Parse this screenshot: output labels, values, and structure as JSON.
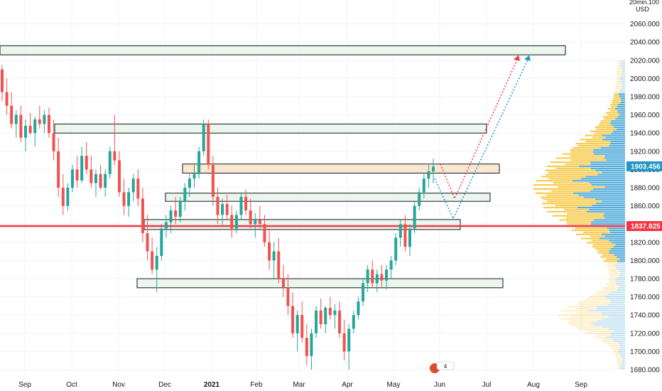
{
  "chart_data": {
    "type": "candlestick",
    "y_axis": {
      "unit_line1": "20min.100",
      "unit_line2": "USD",
      "ticks": [
        2060,
        2040,
        2020,
        2000,
        1980,
        1960,
        1940,
        1920,
        1900,
        1880,
        1860,
        1840,
        1820,
        1800,
        1780,
        1760,
        1740,
        1720,
        1700,
        1680
      ],
      "tick_labels": [
        "2060.000",
        "2040.000",
        "2020.000",
        "2000.000",
        "1980.000",
        "1960.000",
        "1940.000",
        "1920.000",
        "1900.000",
        "1880.000",
        "1860.000",
        "1840.000",
        "1820.000",
        "1800.000",
        "1780.000",
        "1760.000",
        "1740.000",
        "1720.000",
        "1700.000",
        "1680.000"
      ],
      "ylim": [
        1673,
        2080
      ]
    },
    "x_axis": {
      "labels": [
        "Sep",
        "Oct",
        "Nov",
        "Dec",
        "2021",
        "Feb",
        "Mar",
        "Apr",
        "May",
        "Jun",
        "Jul",
        "Aug",
        "Sep"
      ]
    },
    "price_badges": [
      {
        "value": 1903.456,
        "label": "1903.456",
        "color": "#2196c9"
      },
      {
        "value": 1837.825,
        "label": "1837.825",
        "color": "#f23645"
      }
    ],
    "horizontal_line": {
      "value": 1837.825,
      "color": "#f23645"
    },
    "zones": [
      {
        "name": "zone-top",
        "top": 2036,
        "bottom": 2026,
        "fill": "#e8f5e9"
      },
      {
        "name": "zone-1945",
        "top": 1950,
        "bottom": 1940,
        "fill": "#e8f5e9"
      },
      {
        "name": "zone-1900",
        "top": 1906,
        "bottom": 1896,
        "fill": "#fbe3c9"
      },
      {
        "name": "zone-1875",
        "top": 1874,
        "bottom": 1865,
        "fill": "#e8f5e9"
      },
      {
        "name": "zone-1842",
        "top": 1845,
        "bottom": 1834,
        "fill": "#e8f5e9"
      },
      {
        "name": "zone-1775",
        "top": 1780,
        "bottom": 1770,
        "fill": "#e8f5e9"
      }
    ],
    "projections": [
      {
        "name": "projection-red",
        "color": "#f23645",
        "points": [
          [
            1906,
            0
          ],
          [
            1868,
            1
          ],
          [
            2024,
            2
          ]
        ]
      },
      {
        "name": "projection-blue",
        "color": "#2196c9",
        "points": [
          [
            1890,
            0
          ],
          [
            1846,
            1
          ],
          [
            2024,
            2
          ]
        ]
      }
    ],
    "volume_profile_note": "yellow/blue volume-by-price histogram on right",
    "badge": {
      "text": "4"
    },
    "candles": [
      [
        2010,
        2015,
        1975,
        1985
      ],
      [
        1985,
        2000,
        1960,
        1970
      ],
      [
        1970,
        1985,
        1945,
        1950
      ],
      [
        1950,
        1965,
        1935,
        1960
      ],
      [
        1960,
        1970,
        1930,
        1935
      ],
      [
        1935,
        1955,
        1920,
        1948
      ],
      [
        1948,
        1962,
        1938,
        1940
      ],
      [
        1940,
        1958,
        1925,
        1955
      ],
      [
        1955,
        1970,
        1945,
        1950
      ],
      [
        1950,
        1965,
        1940,
        1960
      ],
      [
        1960,
        1968,
        1935,
        1940
      ],
      [
        1940,
        1955,
        1910,
        1920
      ],
      [
        1920,
        1935,
        1870,
        1880
      ],
      [
        1880,
        1895,
        1850,
        1860
      ],
      [
        1860,
        1885,
        1855,
        1880
      ],
      [
        1880,
        1905,
        1875,
        1900
      ],
      [
        1900,
        1915,
        1880,
        1888
      ],
      [
        1888,
        1925,
        1885,
        1915
      ],
      [
        1915,
        1930,
        1895,
        1900
      ],
      [
        1900,
        1915,
        1880,
        1885
      ],
      [
        1885,
        1900,
        1870,
        1895
      ],
      [
        1895,
        1905,
        1878,
        1880
      ],
      [
        1880,
        1900,
        1870,
        1895
      ],
      [
        1895,
        1925,
        1890,
        1920
      ],
      [
        1920,
        1960,
        1905,
        1910
      ],
      [
        1910,
        1920,
        1870,
        1875
      ],
      [
        1875,
        1890,
        1850,
        1860
      ],
      [
        1860,
        1880,
        1848,
        1875
      ],
      [
        1875,
        1895,
        1865,
        1890
      ],
      [
        1890,
        1900,
        1860,
        1868
      ],
      [
        1868,
        1880,
        1820,
        1830
      ],
      [
        1830,
        1850,
        1800,
        1810
      ],
      [
        1810,
        1825,
        1785,
        1790
      ],
      [
        1790,
        1815,
        1765,
        1805
      ],
      [
        1805,
        1840,
        1800,
        1835
      ],
      [
        1835,
        1850,
        1825,
        1842
      ],
      [
        1842,
        1860,
        1830,
        1855
      ],
      [
        1855,
        1870,
        1840,
        1848
      ],
      [
        1848,
        1870,
        1842,
        1865
      ],
      [
        1865,
        1885,
        1855,
        1880
      ],
      [
        1880,
        1895,
        1870,
        1890
      ],
      [
        1890,
        1905,
        1880,
        1895
      ],
      [
        1895,
        1925,
        1890,
        1920
      ],
      [
        1920,
        1955,
        1915,
        1950
      ],
      [
        1950,
        1955,
        1900,
        1905
      ],
      [
        1905,
        1915,
        1860,
        1870
      ],
      [
        1870,
        1880,
        1840,
        1850
      ],
      [
        1850,
        1868,
        1838,
        1862
      ],
      [
        1862,
        1872,
        1845,
        1850
      ],
      [
        1850,
        1860,
        1825,
        1835
      ],
      [
        1835,
        1855,
        1830,
        1850
      ],
      [
        1850,
        1875,
        1845,
        1870
      ],
      [
        1870,
        1878,
        1850,
        1855
      ],
      [
        1855,
        1868,
        1835,
        1840
      ],
      [
        1840,
        1852,
        1825,
        1845
      ],
      [
        1845,
        1860,
        1835,
        1840
      ],
      [
        1840,
        1850,
        1815,
        1820
      ],
      [
        1820,
        1835,
        1790,
        1800
      ],
      [
        1800,
        1820,
        1780,
        1810
      ],
      [
        1810,
        1825,
        1775,
        1780
      ],
      [
        1780,
        1795,
        1760,
        1770
      ],
      [
        1770,
        1785,
        1740,
        1750
      ],
      [
        1750,
        1765,
        1715,
        1720
      ],
      [
        1720,
        1745,
        1700,
        1740
      ],
      [
        1740,
        1755,
        1710,
        1715
      ],
      [
        1715,
        1730,
        1685,
        1695
      ],
      [
        1695,
        1725,
        1680,
        1720
      ],
      [
        1720,
        1750,
        1715,
        1745
      ],
      [
        1745,
        1758,
        1725,
        1730
      ],
      [
        1730,
        1750,
        1720,
        1748
      ],
      [
        1748,
        1760,
        1735,
        1740
      ],
      [
        1740,
        1752,
        1725,
        1745
      ],
      [
        1745,
        1755,
        1715,
        1720
      ],
      [
        1720,
        1735,
        1690,
        1700
      ],
      [
        1700,
        1730,
        1680,
        1725
      ],
      [
        1725,
        1745,
        1720,
        1740
      ],
      [
        1740,
        1760,
        1735,
        1755
      ],
      [
        1755,
        1780,
        1750,
        1775
      ],
      [
        1775,
        1795,
        1765,
        1790
      ],
      [
        1790,
        1800,
        1770,
        1775
      ],
      [
        1775,
        1790,
        1765,
        1785
      ],
      [
        1785,
        1795,
        1770,
        1778
      ],
      [
        1778,
        1795,
        1768,
        1790
      ],
      [
        1790,
        1805,
        1780,
        1800
      ],
      [
        1800,
        1830,
        1795,
        1825
      ],
      [
        1825,
        1845,
        1815,
        1840
      ],
      [
        1840,
        1850,
        1810,
        1815
      ],
      [
        1815,
        1840,
        1805,
        1835
      ],
      [
        1835,
        1865,
        1830,
        1860
      ],
      [
        1860,
        1880,
        1855,
        1875
      ],
      [
        1875,
        1895,
        1868,
        1890
      ],
      [
        1890,
        1905,
        1880,
        1898
      ],
      [
        1898,
        1912,
        1885,
        1903
      ]
    ]
  }
}
